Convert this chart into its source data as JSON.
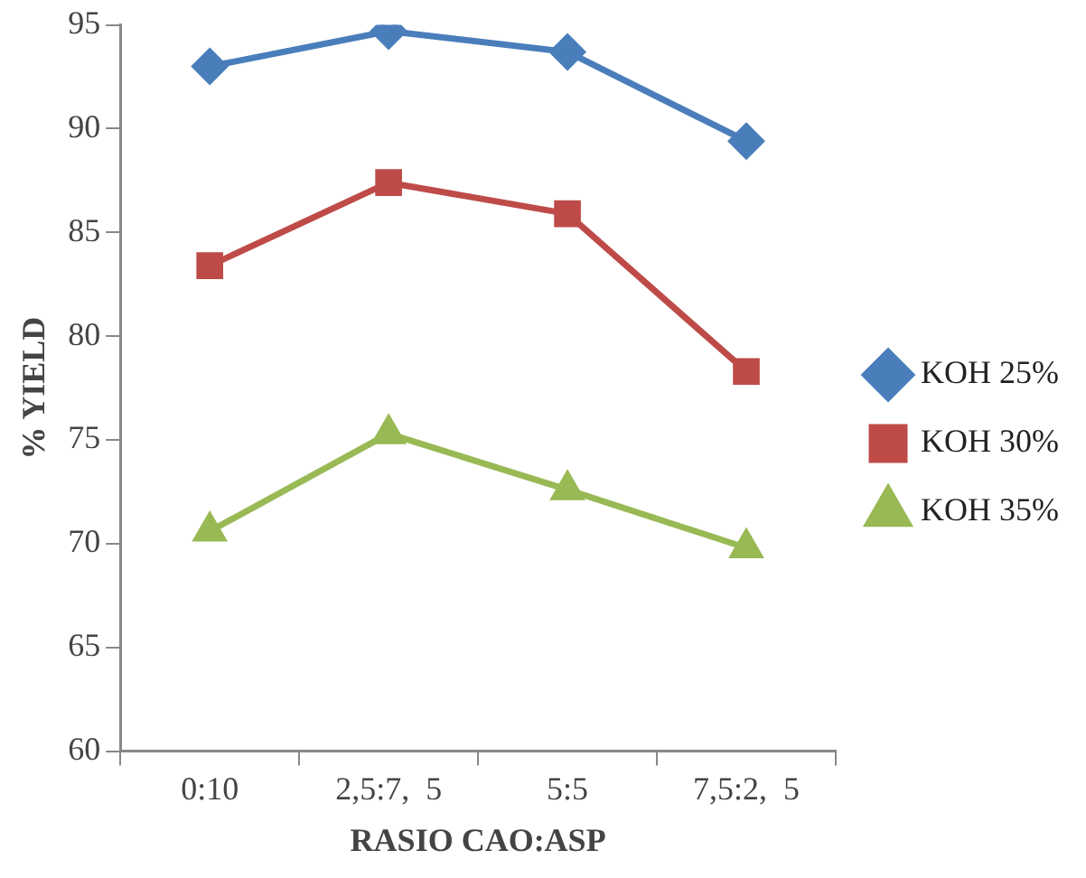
{
  "chart_data": {
    "type": "line",
    "xlabel": "RASIO CAO:ASP",
    "ylabel": "% YIELD",
    "categories": [
      "0:10",
      "2,5:7,  5",
      "5:5",
      "7,5:2,  5"
    ],
    "series": [
      {
        "name": "KOH 25%",
        "color": "#4a7ebb",
        "marker": "diamond",
        "values": [
          93.0,
          94.7,
          93.7,
          89.4
        ]
      },
      {
        "name": "KOH 30%",
        "color": "#be4b48",
        "marker": "square",
        "values": [
          83.4,
          87.4,
          85.9,
          78.3
        ]
      },
      {
        "name": "KOH 35%",
        "color": "#98b954",
        "marker": "triangle",
        "values": [
          70.6,
          75.3,
          72.6,
          69.8
        ]
      }
    ],
    "ylim": [
      60,
      95
    ],
    "yticks": [
      60,
      65,
      70,
      75,
      80,
      85,
      90,
      95
    ],
    "grid": false,
    "legend": "right"
  }
}
